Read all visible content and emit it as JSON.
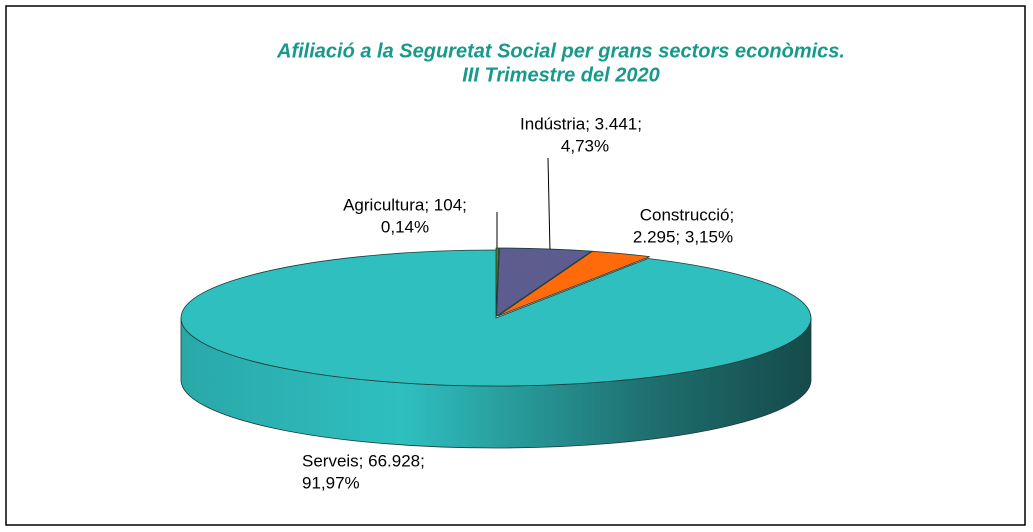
{
  "chart_data": {
    "type": "pie3d",
    "title": [
      "Afiliació a la Seguretat Social per grans sectors econòmics.",
      "III Trimestre del 2020"
    ],
    "values": [
      104,
      3441,
      2295,
      66928
    ],
    "value_labels": [
      [
        "Agricultura; 104;",
        "0,14%"
      ],
      [
        "Indústria; 3.441;",
        "4,73%"
      ],
      [
        "Construcció;",
        "2.295; 3,15%"
      ],
      [
        "Serveis; 66.928;",
        "91,97%"
      ]
    ],
    "colors": [
      "#5e7a1e",
      "#5c5c8e",
      "#ff6a0a",
      "#2fbfbf"
    ]
  }
}
